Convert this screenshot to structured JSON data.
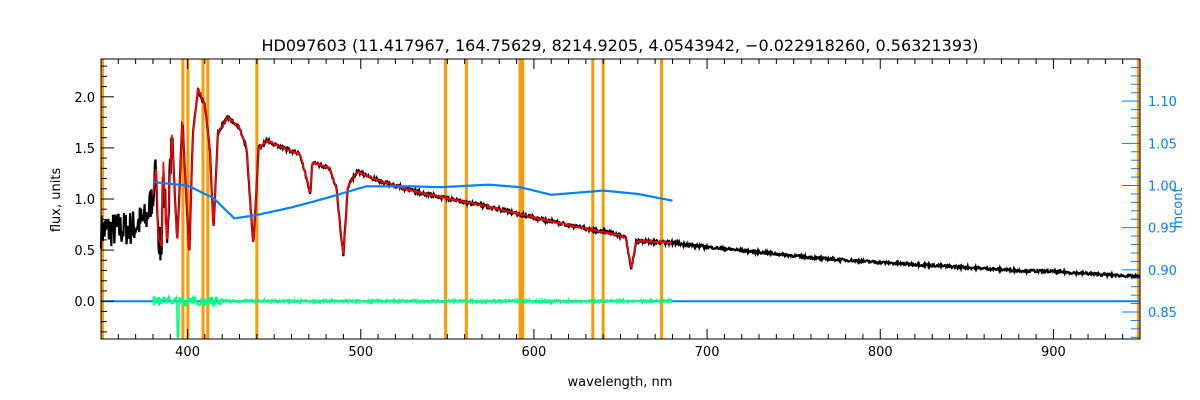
{
  "chart_data": {
    "type": "line",
    "title": "HD097603    (11.417967, 164.75629, 8214.9205, 4.0543942, −0.022918260, 0.56321393)",
    "xlabel": "wavelength, nm",
    "ylabel": "flux, units",
    "y2label": "mcont",
    "xlim": [
      350,
      950
    ],
    "ylim": [
      -0.37,
      2.37
    ],
    "y2lim": [
      0.818,
      1.15
    ],
    "xticks": [
      "400",
      "500",
      "600",
      "700",
      "800",
      "900"
    ],
    "xtick_values": [
      400,
      500,
      600,
      700,
      800,
      900
    ],
    "yticks": [
      "0.0",
      "0.5",
      "1.0",
      "1.5",
      "2.0"
    ],
    "ytick_values": [
      0,
      0.5,
      1.0,
      1.5,
      2.0
    ],
    "y2ticks": [
      "0.85",
      "0.90",
      "0.95",
      "1.00",
      "1.05",
      "1.10"
    ],
    "y2tick_values": [
      0.85,
      0.9,
      0.95,
      1.0,
      1.05,
      1.1
    ],
    "colors": {
      "observed": "#000000",
      "model": "#ff0000",
      "mcont": "#0080ff",
      "residual": "#00ff80",
      "mask_lines": "#ff9900",
      "y2axis": "#0080ff"
    },
    "series": [
      {
        "name": "observed flux",
        "x": [
          350,
          360,
          368,
          372,
          376,
          380,
          382,
          383,
          385,
          386,
          388,
          391,
          394,
          397,
          401,
          403,
          406,
          410,
          413,
          415,
          417.5,
          423,
          430,
          434,
          438,
          441,
          446,
          455,
          465,
          471,
          472,
          482,
          486,
          488,
          490,
          492.5,
          498,
          507,
          518,
          532,
          546,
          560,
          580,
          592,
          610,
          633,
          648,
          653,
          656.3,
          659,
          662,
          680,
          700,
          730,
          764,
          800,
          840,
          880,
          900,
          920,
          940,
          950
        ],
        "y": [
          0.69,
          0.7,
          0.72,
          0.77,
          0.8,
          1.04,
          1.32,
          0.62,
          0.54,
          1.39,
          0.55,
          1.65,
          0.57,
          1.78,
          0.44,
          1.62,
          2.07,
          1.92,
          1.45,
          0.7,
          1.65,
          1.8,
          1.7,
          1.5,
          0.54,
          1.5,
          1.57,
          1.5,
          1.44,
          1.05,
          1.36,
          1.3,
          1.1,
          0.75,
          0.45,
          1.12,
          1.27,
          1.2,
          1.14,
          1.07,
          1.02,
          0.97,
          0.9,
          0.85,
          0.78,
          0.7,
          0.65,
          0.62,
          0.32,
          0.58,
          0.59,
          0.57,
          0.53,
          0.48,
          0.42,
          0.38,
          0.34,
          0.3,
          0.29,
          0.27,
          0.25,
          0.24
        ]
      },
      {
        "name": "model",
        "range": [
          380,
          680
        ]
      },
      {
        "name": "mcont",
        "x": [
          380,
          400,
          415,
          427,
          440,
          460,
          480,
          503,
          530,
          546,
          574,
          592,
          610,
          640,
          660,
          680
        ],
        "y": [
          1.004,
          1.0,
          0.985,
          0.961,
          0.965,
          0.974,
          0.985,
          0.999,
          0.999,
          0.998,
          1.001,
          0.998,
          0.989,
          0.994,
          0.99,
          0.982
        ]
      },
      {
        "name": "residual",
        "range": [
          380,
          680
        ],
        "level": 0.0,
        "min": -0.35
      },
      {
        "name": "zero line",
        "range": [
          350,
          950
        ],
        "level": 0.0
      }
    ],
    "mask_lines_nm": [
      350,
      397.3,
      400.2,
      408.9,
      411.7,
      440,
      549,
      561,
      592,
      593.5,
      634,
      640,
      673.7,
      950
    ]
  }
}
